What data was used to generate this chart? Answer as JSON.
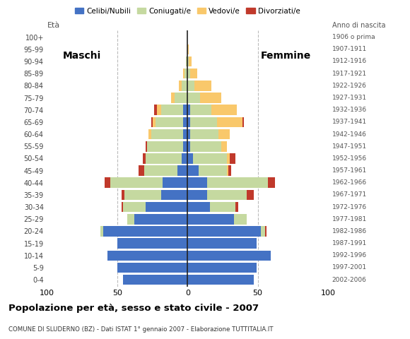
{
  "age_groups_bottom_to_top": [
    "0-4",
    "5-9",
    "10-14",
    "15-19",
    "20-24",
    "25-29",
    "30-34",
    "35-39",
    "40-44",
    "45-49",
    "50-54",
    "55-59",
    "60-64",
    "65-69",
    "70-74",
    "75-79",
    "80-84",
    "85-89",
    "90-94",
    "95-99",
    "100+"
  ],
  "birth_years_bottom_to_top": [
    "2002-2006",
    "1997-2001",
    "1992-1996",
    "1987-1991",
    "1982-1986",
    "1977-1981",
    "1972-1976",
    "1967-1971",
    "1962-1966",
    "1957-1961",
    "1952-1956",
    "1947-1951",
    "1942-1946",
    "1937-1941",
    "1932-1936",
    "1927-1931",
    "1922-1926",
    "1917-1921",
    "1912-1916",
    "1907-1911",
    "1906 o prima"
  ],
  "male": {
    "celibi": [
      46,
      50,
      57,
      50,
      60,
      38,
      30,
      19,
      18,
      7,
      4,
      3,
      3,
      3,
      3,
      0,
      0,
      0,
      0,
      0,
      0
    ],
    "coniugati": [
      0,
      0,
      0,
      0,
      2,
      5,
      16,
      26,
      37,
      24,
      26,
      26,
      23,
      20,
      16,
      9,
      4,
      2,
      1,
      0,
      0
    ],
    "vedovi": [
      0,
      0,
      0,
      0,
      0,
      0,
      0,
      0,
      0,
      0,
      0,
      0,
      2,
      2,
      3,
      3,
      2,
      1,
      0,
      0,
      0
    ],
    "divorziati": [
      0,
      0,
      0,
      0,
      0,
      0,
      1,
      2,
      4,
      4,
      2,
      1,
      0,
      1,
      2,
      0,
      0,
      0,
      0,
      0,
      0
    ]
  },
  "female": {
    "nubili": [
      47,
      49,
      59,
      49,
      52,
      33,
      16,
      14,
      14,
      8,
      4,
      2,
      2,
      2,
      2,
      0,
      0,
      0,
      0,
      0,
      0
    ],
    "coniugate": [
      0,
      0,
      0,
      0,
      3,
      9,
      18,
      28,
      43,
      20,
      24,
      22,
      20,
      19,
      15,
      9,
      5,
      2,
      1,
      0,
      0
    ],
    "vedove": [
      0,
      0,
      0,
      0,
      0,
      0,
      0,
      0,
      0,
      1,
      2,
      4,
      8,
      18,
      18,
      15,
      12,
      5,
      2,
      1,
      0
    ],
    "divorziate": [
      0,
      0,
      0,
      0,
      1,
      0,
      2,
      5,
      5,
      2,
      4,
      0,
      0,
      1,
      0,
      0,
      0,
      0,
      0,
      0,
      0
    ]
  },
  "colors": {
    "celibi_nubili": "#4472c4",
    "coniugati_e": "#c5d9a0",
    "vedovi_e": "#f9c86b",
    "divorziati_e": "#c0392b"
  },
  "title": "Popolazione per età, sesso e stato civile - 2007",
  "subtitle": "COMUNE DI SLUDERNO (BZ) - Dati ISTAT 1° gennaio 2007 - Elaborazione TUTTITALIA.IT",
  "eta_label": "Età",
  "anno_label": "Anno di nascita",
  "maschi_label": "Maschi",
  "femmine_label": "Femmine",
  "xlim": 100,
  "legend_labels": [
    "Celibi/Nubili",
    "Coniugati/e",
    "Vedovi/e",
    "Divorziati/e"
  ],
  "background_color": "#ffffff",
  "grid_color": "#bbbbbb"
}
